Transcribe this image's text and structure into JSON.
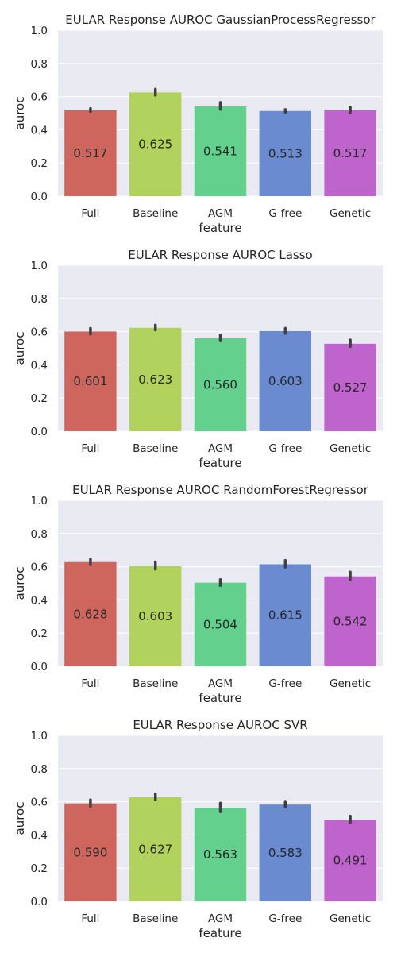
{
  "chart_data": [
    {
      "type": "bar",
      "title": "EULAR Response AUROC GaussianProcessRegressor",
      "xlabel": "feature",
      "ylabel": "auroc",
      "ylim": [
        0,
        1
      ],
      "yticks": [
        "0.0",
        "0.2",
        "0.4",
        "0.6",
        "0.8",
        "1.0"
      ],
      "categories": [
        "Full",
        "Baseline",
        "AGM",
        "G-free",
        "Genetic"
      ],
      "values": [
        0.517,
        0.625,
        0.541,
        0.513,
        0.517
      ],
      "value_labels": [
        "0.517",
        "0.625",
        "0.541",
        "0.513",
        "0.517"
      ],
      "error_low": [
        0.51,
        0.608,
        0.523,
        0.505,
        0.503
      ],
      "error_high": [
        0.528,
        0.645,
        0.565,
        0.522,
        0.536
      ]
    },
    {
      "type": "bar",
      "title": "EULAR Response AUROC Lasso",
      "xlabel": "feature",
      "ylabel": "auroc",
      "ylim": [
        0,
        1
      ],
      "yticks": [
        "0.0",
        "0.2",
        "0.4",
        "0.6",
        "0.8",
        "1.0"
      ],
      "categories": [
        "Full",
        "Baseline",
        "AGM",
        "G-free",
        "Genetic"
      ],
      "values": [
        0.601,
        0.623,
        0.56,
        0.603,
        0.527
      ],
      "value_labels": [
        "0.601",
        "0.623",
        "0.560",
        "0.603",
        "0.527"
      ],
      "error_low": [
        0.585,
        0.61,
        0.545,
        0.59,
        0.51
      ],
      "error_high": [
        0.62,
        0.64,
        0.58,
        0.62,
        0.55
      ]
    },
    {
      "type": "bar",
      "title": "EULAR Response AUROC RandomForestRegressor",
      "xlabel": "feature",
      "ylabel": "auroc",
      "ylim": [
        0,
        1
      ],
      "yticks": [
        "0.0",
        "0.2",
        "0.4",
        "0.6",
        "0.8",
        "1.0"
      ],
      "categories": [
        "Full",
        "Baseline",
        "AGM",
        "G-free",
        "Genetic"
      ],
      "values": [
        0.628,
        0.603,
        0.504,
        0.615,
        0.542
      ],
      "value_labels": [
        "0.628",
        "0.603",
        "0.504",
        "0.615",
        "0.542"
      ],
      "error_low": [
        0.612,
        0.585,
        0.487,
        0.597,
        0.522
      ],
      "error_high": [
        0.646,
        0.629,
        0.523,
        0.638,
        0.568
      ]
    },
    {
      "type": "bar",
      "title": "EULAR Response AUROC SVR",
      "xlabel": "feature",
      "ylabel": "auroc",
      "ylim": [
        0,
        1
      ],
      "yticks": [
        "0.0",
        "0.2",
        "0.4",
        "0.6",
        "0.8",
        "1.0"
      ],
      "categories": [
        "Full",
        "Baseline",
        "AGM",
        "G-free",
        "Genetic"
      ],
      "values": [
        0.59,
        0.627,
        0.563,
        0.583,
        0.491
      ],
      "value_labels": [
        "0.590",
        "0.627",
        "0.563",
        "0.583",
        "0.491"
      ],
      "error_low": [
        0.572,
        0.612,
        0.54,
        0.568,
        0.473
      ],
      "error_high": [
        0.612,
        0.648,
        0.592,
        0.603,
        0.514
      ]
    }
  ],
  "colors": [
    "#cf665d",
    "#b2d25e",
    "#63d08e",
    "#6a8bd0",
    "#bf64cc"
  ],
  "background": "#eaeaf2",
  "gridlines": "#ffffff",
  "errorbar": "#404040"
}
